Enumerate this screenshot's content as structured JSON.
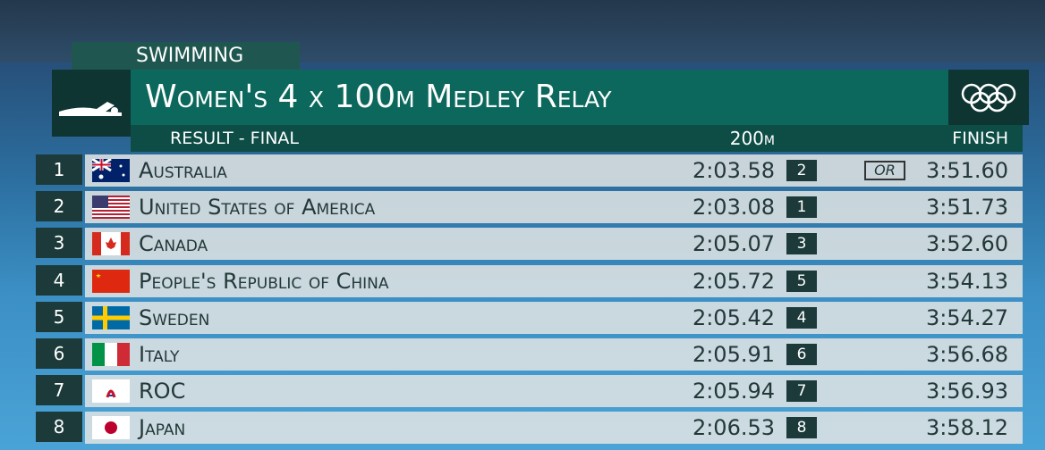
{
  "header": {
    "sport": "SWIMMING",
    "title": "Women's 4 x 100m Medley Relay",
    "subtitle": "RESULT - FINAL",
    "split_label": "200m",
    "finish_label": "FINISH"
  },
  "rows": [
    {
      "rank": "1",
      "country": "Australia",
      "split": "2:03.58",
      "split_rank": "2",
      "record": "OR",
      "finish": "3:51.60"
    },
    {
      "rank": "2",
      "country": "United States of America",
      "split": "2:03.08",
      "split_rank": "1",
      "finish": "3:51.73"
    },
    {
      "rank": "3",
      "country": "Canada",
      "split": "2:05.07",
      "split_rank": "3",
      "finish": "3:52.60"
    },
    {
      "rank": "4",
      "country": "People's Republic of China",
      "split": "2:05.72",
      "split_rank": "5",
      "finish": "3:54.13"
    },
    {
      "rank": "5",
      "country": "Sweden",
      "split": "2:05.42",
      "split_rank": "4",
      "finish": "3:54.27"
    },
    {
      "rank": "6",
      "country": "Italy",
      "split": "2:05.91",
      "split_rank": "6",
      "finish": "3:56.68"
    },
    {
      "rank": "7",
      "country": "ROC",
      "split": "2:05.94",
      "split_rank": "7",
      "finish": "3:56.93"
    },
    {
      "rank": "8",
      "country": "Japan",
      "split": "2:06.53",
      "split_rank": "8",
      "finish": "3:58.12"
    }
  ]
}
